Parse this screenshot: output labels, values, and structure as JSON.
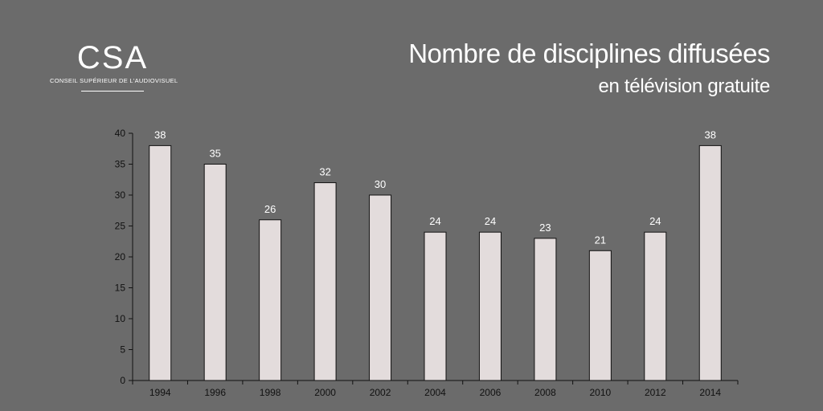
{
  "logo": {
    "mark": "CSA",
    "subtitle": "CONSEIL SUPÉRIEUR DE L'AUDIOVISUEL"
  },
  "chart_data": {
    "type": "bar",
    "title": "Nombre de disciplines diffusées",
    "subtitle": "en télévision gratuite",
    "categories": [
      "1994",
      "1996",
      "1998",
      "2000",
      "2002",
      "2004",
      "2006",
      "2008",
      "2010",
      "2012",
      "2014"
    ],
    "values": [
      38,
      35,
      26,
      32,
      30,
      24,
      24,
      23,
      21,
      24,
      38
    ],
    "xlabel": "",
    "ylabel": "",
    "ylim": [
      0,
      40
    ],
    "yticks": [
      0,
      5,
      10,
      15,
      20,
      25,
      30,
      35,
      40
    ],
    "grid": false,
    "legend": "none",
    "colors": {
      "bar_fill": "#e3dcdc",
      "bar_stroke": "#111111",
      "background": "#6b6b6b",
      "data_label": "#ffffff"
    }
  }
}
